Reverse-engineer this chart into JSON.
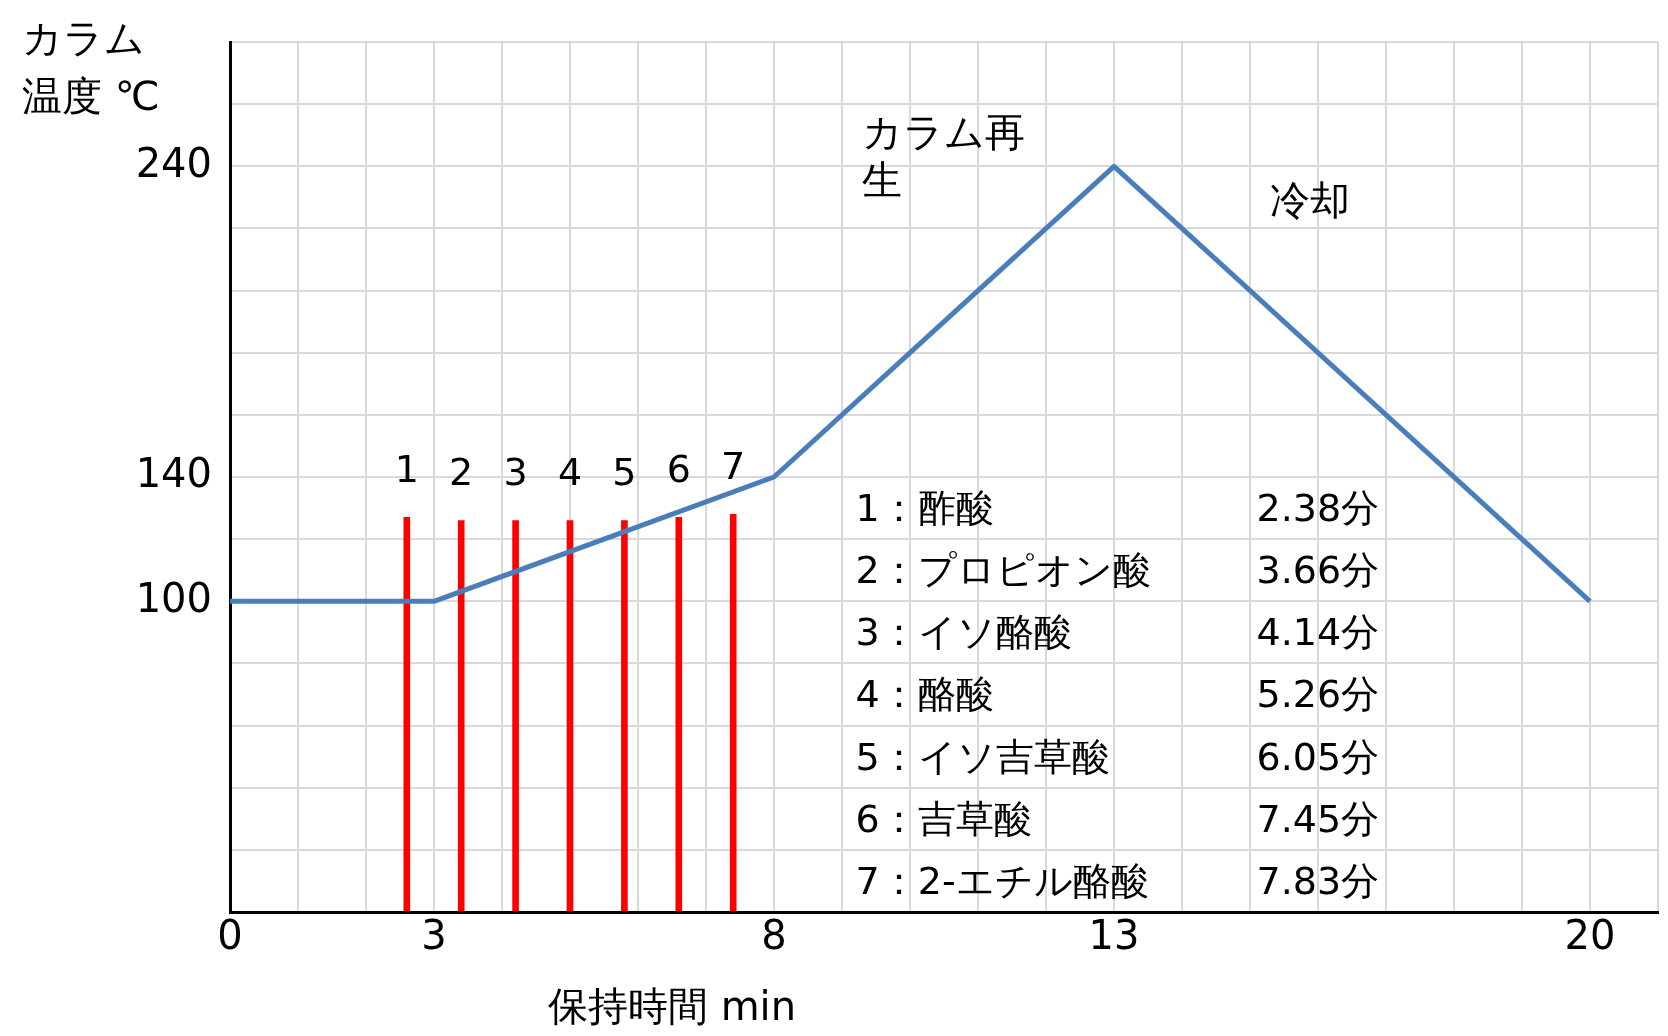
{
  "chart_data": {
    "type": "line",
    "xlabel": "保持時間 min",
    "ylabel": "カラム温度 ℃",
    "xlim": [
      0,
      21
    ],
    "ylim": [
      0,
      280
    ],
    "xticks": [
      0,
      {
        "value": 1,
        "label": null
      },
      {
        "value": 2,
        "label": null
      },
      3,
      {
        "value": 4,
        "label": null
      },
      {
        "value": 5,
        "label": null
      },
      {
        "value": 6,
        "label": null
      },
      {
        "value": 7,
        "label": null
      },
      8,
      {
        "value": 9,
        "label": null
      },
      {
        "value": 10,
        "label": null
      },
      {
        "value": 11,
        "label": null
      },
      {
        "value": 12,
        "label": null
      },
      13,
      {
        "value": 14,
        "label": null
      },
      {
        "value": 15,
        "label": null
      },
      {
        "value": 16,
        "label": null
      },
      {
        "value": 17,
        "label": null
      },
      {
        "value": 18,
        "label": null
      },
      {
        "value": 19,
        "label": null
      },
      20,
      {
        "value": 21,
        "label": null
      }
    ],
    "yticks": [
      {
        "value": 0,
        "label": null
      },
      {
        "value": 20,
        "label": null
      },
      {
        "value": 40,
        "label": null
      },
      {
        "value": 60,
        "label": null
      },
      {
        "value": 80,
        "label": null
      },
      100,
      {
        "value": 120,
        "label": null
      },
      140,
      {
        "value": 160,
        "label": null
      },
      {
        "value": 180,
        "label": null
      },
      {
        "value": 200,
        "label": null
      },
      {
        "value": 220,
        "label": null
      },
      240,
      {
        "value": 260,
        "label": null
      },
      {
        "value": 280,
        "label": null
      }
    ],
    "grid": true,
    "legend": false,
    "series": [
      {
        "color": "#4a7ebb",
        "x": [
          0,
          3,
          8,
          13,
          20
        ],
        "values": [
          100,
          100,
          140,
          240,
          100
        ]
      },
      {
        "type": "bar",
        "color": "#ff0000",
        "x": [
          2.6,
          3.4,
          4.2,
          5.0,
          5.8,
          6.6,
          7.4
        ],
        "values": [
          127,
          126,
          126,
          126,
          126,
          127,
          128
        ]
      }
    ],
    "annotations": [
      "カラム再生",
      "冷却",
      {
        "text": "1",
        "x": 2.6,
        "y": 127
      },
      {
        "text": "2",
        "x": 3.4,
        "y": 126
      },
      {
        "text": "3",
        "x": 4.2,
        "y": 126
      },
      {
        "text": "4",
        "x": 5.0,
        "y": 126
      },
      {
        "text": "5",
        "x": 5.8,
        "y": 126
      },
      {
        "text": "6",
        "x": 6.6,
        "y": 127
      },
      {
        "text": "7",
        "x": 7.4,
        "y": 128
      },
      "1：酢酸 2.38分",
      "2：プロピオン酸 3.66分",
      "3：イソ酪酸 4.14分",
      "4：酪酸 5.26分",
      "5：イソ吉草酸 6.05分",
      "6：吉草酸 7.45分",
      "7：2-エチル酪酸 7.83分"
    ]
  }
}
